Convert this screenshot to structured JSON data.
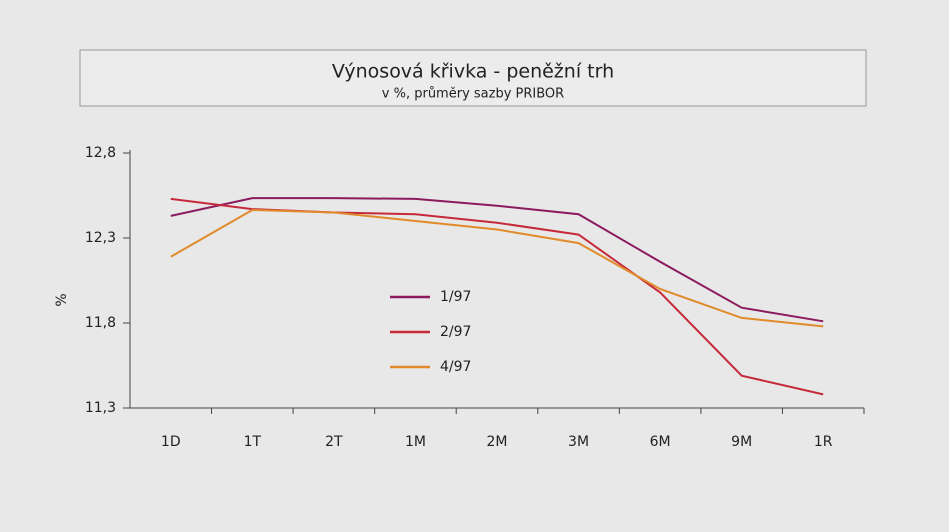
{
  "chart_data": {
    "type": "line",
    "title": "Výnosová křivka - peněžní trh",
    "subtitle": "v %, průměry sazby PRIBOR",
    "y_label": "%",
    "categories": [
      "1D",
      "1T",
      "2T",
      "1M",
      "2M",
      "3M",
      "6M",
      "9M",
      "1R"
    ],
    "series": [
      {
        "name": "1/97",
        "color": "#8b1a5e",
        "values": [
          12.43,
          12.535,
          12.535,
          12.53,
          12.49,
          12.44,
          12.16,
          11.89,
          11.81
        ]
      },
      {
        "name": "2/97",
        "color": "#c62a3a",
        "values": [
          12.53,
          12.47,
          12.45,
          12.44,
          12.39,
          12.32,
          11.98,
          11.49,
          11.38
        ]
      },
      {
        "name": "4/97",
        "color": "#e08a2a",
        "values": [
          12.19,
          12.465,
          12.45,
          12.4,
          12.35,
          12.27,
          12.0,
          11.83,
          11.78
        ]
      }
    ],
    "ylim": [
      11.3,
      12.8
    ],
    "yticks": [
      {
        "value": 11.3,
        "label": "11,3"
      },
      {
        "value": 11.8,
        "label": "11,8"
      },
      {
        "value": 12.3,
        "label": "12,3"
      },
      {
        "value": 12.8,
        "label": "12,8"
      }
    ],
    "grid": false,
    "legend": "center"
  }
}
